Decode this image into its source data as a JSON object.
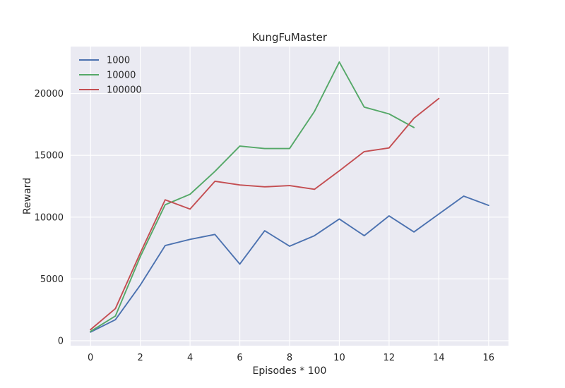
{
  "chart_data": {
    "type": "line",
    "title": "KungFuMaster",
    "xlabel": "Episodes * 100",
    "ylabel": "Reward",
    "xlim": [
      -0.8,
      16.8
    ],
    "ylim": [
      -400,
      23800
    ],
    "xticks": [
      0,
      2,
      4,
      6,
      8,
      10,
      12,
      14,
      16
    ],
    "yticks": [
      0,
      5000,
      10000,
      15000,
      20000
    ],
    "grid": true,
    "legend_position": "top-left",
    "series": [
      {
        "name": "1000",
        "color": "#4c72b0",
        "x": [
          0,
          1,
          2,
          3,
          4,
          5,
          6,
          7,
          8,
          9,
          10,
          11,
          12,
          13,
          14,
          15,
          16
        ],
        "values": [
          700,
          1700,
          4500,
          7700,
          8200,
          8600,
          6200,
          8900,
          7650,
          8500,
          9850,
          8500,
          10100,
          8800,
          10250,
          11700,
          10950
        ]
      },
      {
        "name": "10000",
        "color": "#55a868",
        "x": [
          0,
          1,
          2,
          3,
          4,
          5,
          6,
          7,
          8,
          9,
          10,
          11,
          12,
          13
        ],
        "values": [
          750,
          2000,
          6800,
          11000,
          11850,
          13700,
          15750,
          15550,
          15550,
          18550,
          22550,
          18900,
          18350,
          17250
        ]
      },
      {
        "name": "100000",
        "color": "#c44e52",
        "x": [
          0,
          1,
          2,
          3,
          4,
          5,
          6,
          7,
          8,
          9,
          10,
          11,
          12,
          13,
          14
        ],
        "values": [
          900,
          2600,
          7100,
          11400,
          10650,
          12900,
          12600,
          12450,
          12550,
          12250,
          13750,
          15300,
          15600,
          18000,
          19600
        ]
      }
    ]
  }
}
